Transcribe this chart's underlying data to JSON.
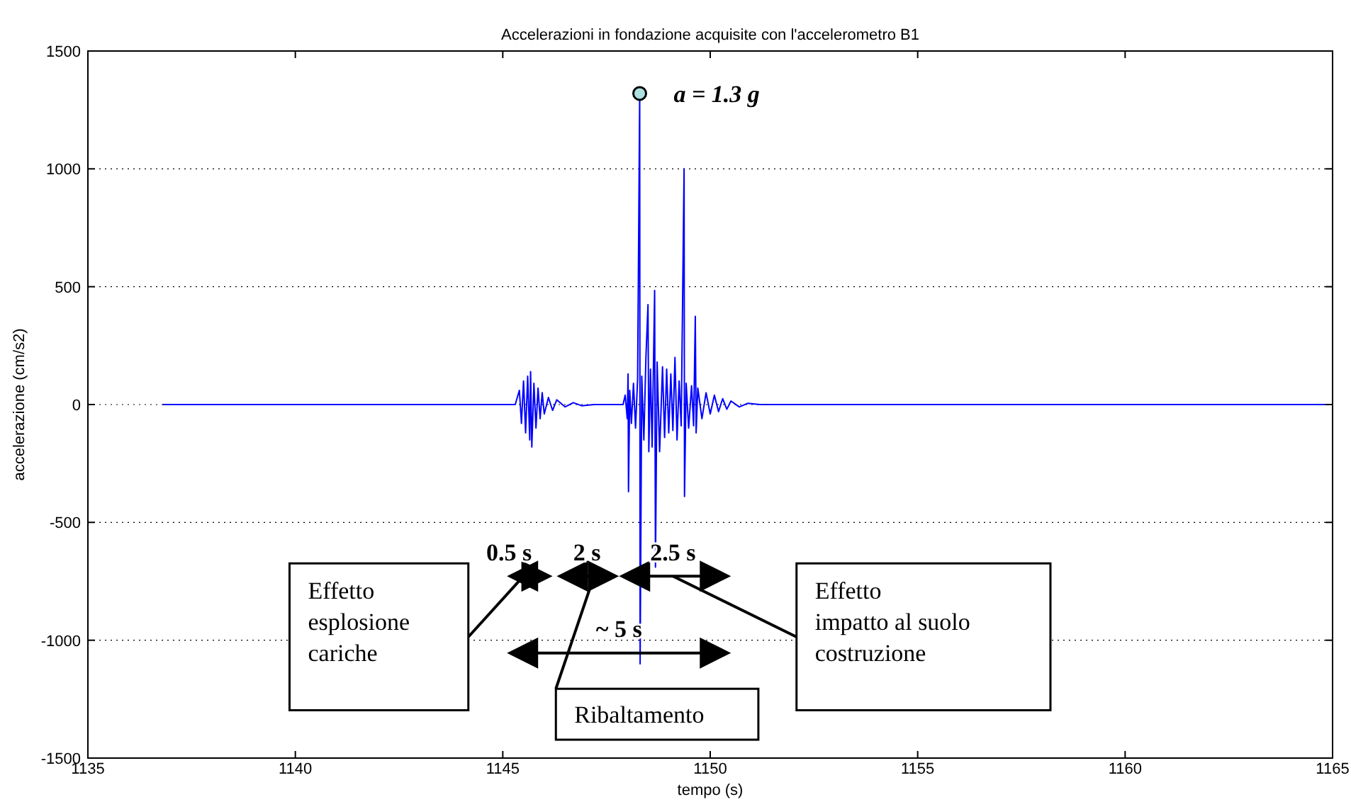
{
  "chart_data": {
    "type": "line",
    "title": "Accelerazioni in fondazione acquisite con l'accelerometro B1",
    "xlabel": "tempo (s)",
    "ylabel": "accelerazione (cm/s2)",
    "xlim": [
      1135,
      1165
    ],
    "xticks": [
      1135,
      1140,
      1145,
      1150,
      1155,
      1160,
      1165
    ],
    "ylim": [
      -1500,
      1500
    ],
    "yticks": [
      -1500,
      -1000,
      -500,
      0,
      500,
      1000,
      1500
    ],
    "grid": "y",
    "marker": "none",
    "line_style": "solid",
    "series": [
      {
        "color": "#0000ff",
        "x": [
          1136.8,
          1145.3,
          1145.4,
          1145.45,
          1145.5,
          1145.55,
          1145.6,
          1145.65,
          1145.67,
          1145.7,
          1145.75,
          1145.8,
          1145.85,
          1145.9,
          1145.95,
          1146.0,
          1146.1,
          1146.2,
          1146.3,
          1146.5,
          1146.7,
          1146.9,
          1147.2,
          1147.9,
          1147.95,
          1148.0,
          1148.02,
          1148.03,
          1148.06,
          1148.1,
          1148.15,
          1148.2,
          1148.25,
          1148.3,
          1148.31,
          1148.35,
          1148.4,
          1148.45,
          1148.5,
          1148.52,
          1148.56,
          1148.6,
          1148.66,
          1148.68,
          1148.72,
          1148.78,
          1148.85,
          1148.9,
          1148.95,
          1149.0,
          1149.05,
          1149.1,
          1149.15,
          1149.2,
          1149.25,
          1149.3,
          1149.37,
          1149.38,
          1149.42,
          1149.48,
          1149.55,
          1149.6,
          1149.64,
          1149.66,
          1149.7,
          1149.8,
          1149.9,
          1150.0,
          1150.1,
          1150.2,
          1150.3,
          1150.4,
          1150.5,
          1150.7,
          1150.9,
          1151.2,
          1165
        ],
        "values": [
          0,
          0,
          60,
          -80,
          100,
          -120,
          120,
          -150,
          140,
          -180,
          90,
          -100,
          70,
          -60,
          50,
          -40,
          30,
          -25,
          20,
          -10,
          8,
          -5,
          0,
          0,
          40,
          -60,
          130,
          -370,
          60,
          -80,
          90,
          -100,
          110,
          1320,
          -1100,
          120,
          -150,
          200,
          424,
          -200,
          150,
          -180,
          484,
          -690,
          180,
          -200,
          160,
          -140,
          150,
          -120,
          130,
          -110,
          200,
          -150,
          100,
          -90,
          1000,
          -390,
          90,
          -100,
          80,
          -90,
          374,
          -120,
          70,
          -60,
          50,
          -40,
          40,
          -30,
          25,
          -20,
          15,
          -10,
          5,
          0,
          0
        ]
      }
    ],
    "annotations": [
      {
        "text": "a = 1.3 g",
        "x": 1148.3,
        "y": 1320
      },
      "0.5 s",
      "2 s",
      "2.5 s",
      "~ 5 s",
      "Effetto\nesplosione\ncariche",
      "Ribaltamento",
      "Effetto\nimpatto al suolo\ncostruzione"
    ]
  }
}
